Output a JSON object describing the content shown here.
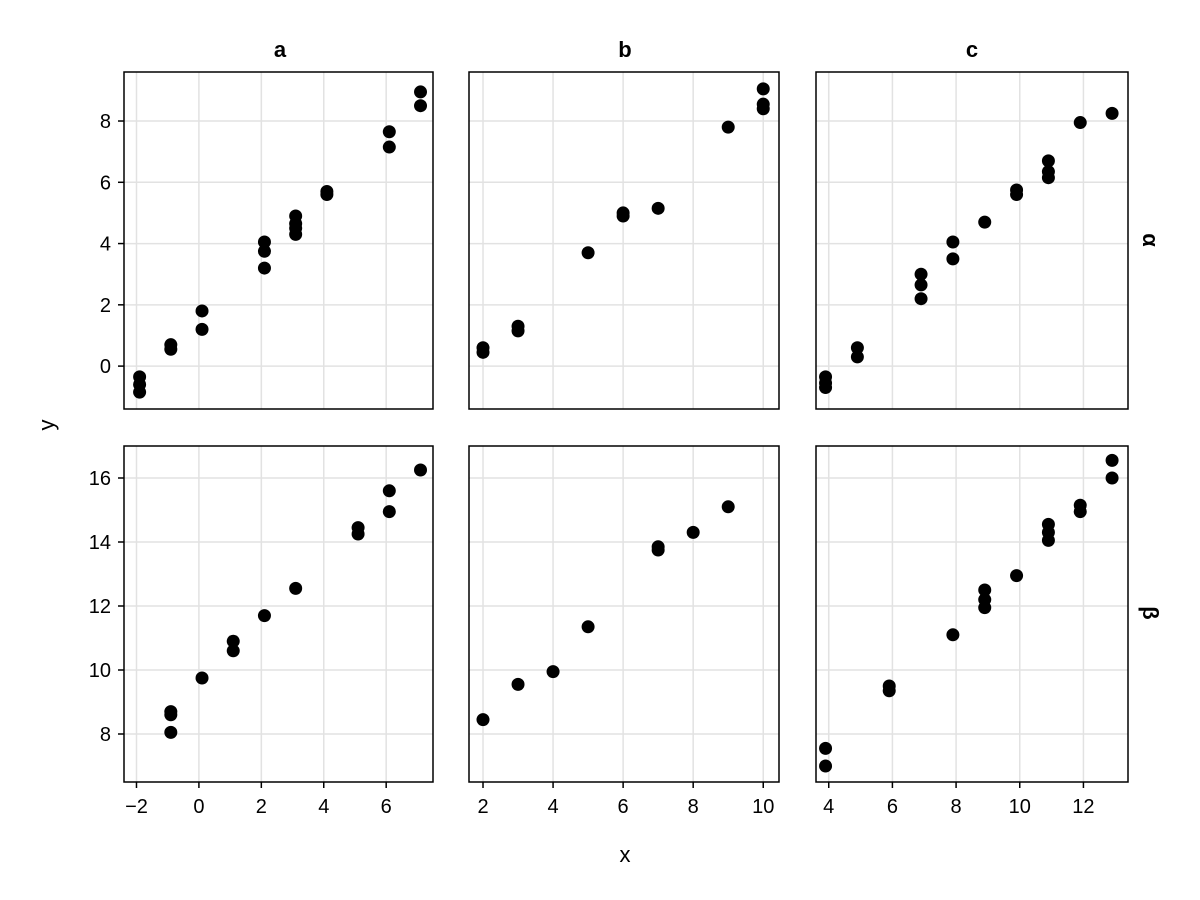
{
  "chart_data": {
    "type": "scatter",
    "xlabel": "x",
    "ylabel": "y",
    "column_labels": [
      "a",
      "b",
      "c"
    ],
    "row_labels": [
      "α",
      "β"
    ],
    "grid": true,
    "marker_color": "#000000",
    "row_yaxes": [
      {
        "ylim": [
          -1.4,
          9.6
        ],
        "yticks": [
          0,
          2,
          4,
          6,
          8
        ],
        "ytick_labels": [
          "0",
          "2",
          "4",
          "6",
          "8"
        ]
      },
      {
        "ylim": [
          6.5,
          17.0
        ],
        "yticks": [
          8,
          10,
          12,
          14,
          16
        ],
        "ytick_labels": [
          "8",
          "10",
          "12",
          "14",
          "16"
        ]
      }
    ],
    "col_xaxes": [
      {
        "xlim": [
          -2.4,
          7.5
        ],
        "xticks": [
          -2,
          0,
          2,
          4,
          6
        ],
        "xtick_labels": [
          "−2",
          "0",
          "2",
          "4",
          "6"
        ]
      },
      {
        "xlim": [
          1.6,
          10.45
        ],
        "xticks": [
          2,
          4,
          6,
          8,
          10
        ],
        "xtick_labels": [
          "2",
          "4",
          "6",
          "8",
          "10"
        ]
      },
      {
        "xlim": [
          3.6,
          13.4
        ],
        "xticks": [
          4,
          6,
          8,
          10,
          12
        ],
        "xtick_labels": [
          "4",
          "6",
          "8",
          "10",
          "12"
        ]
      }
    ],
    "panels": [
      {
        "row": 0,
        "col": 0,
        "points": [
          [
            -1.9,
            -0.35
          ],
          [
            -1.9,
            -0.6
          ],
          [
            -1.9,
            -0.85
          ],
          [
            -0.9,
            0.55
          ],
          [
            -0.9,
            0.7
          ],
          [
            0.1,
            1.2
          ],
          [
            0.1,
            1.8
          ],
          [
            2.1,
            3.2
          ],
          [
            2.1,
            3.75
          ],
          [
            2.1,
            4.05
          ],
          [
            3.1,
            4.3
          ],
          [
            3.1,
            4.5
          ],
          [
            3.1,
            4.65
          ],
          [
            3.1,
            4.9
          ],
          [
            4.1,
            5.6
          ],
          [
            4.1,
            5.7
          ],
          [
            6.1,
            7.15
          ],
          [
            6.1,
            7.65
          ],
          [
            7.1,
            8.5
          ],
          [
            7.1,
            8.95
          ]
        ]
      },
      {
        "row": 0,
        "col": 1,
        "points": [
          [
            2,
            0.45
          ],
          [
            2,
            0.6
          ],
          [
            3,
            1.15
          ],
          [
            3,
            1.3
          ],
          [
            5,
            3.7
          ],
          [
            6,
            4.9
          ],
          [
            6,
            5.0
          ],
          [
            7,
            5.15
          ],
          [
            9,
            7.8
          ],
          [
            10,
            8.4
          ],
          [
            10,
            8.55
          ],
          [
            10,
            9.05
          ]
        ]
      },
      {
        "row": 0,
        "col": 2,
        "points": [
          [
            3.9,
            -0.35
          ],
          [
            3.9,
            -0.55
          ],
          [
            3.9,
            -0.7
          ],
          [
            4.9,
            0.3
          ],
          [
            4.9,
            0.6
          ],
          [
            6.9,
            2.2
          ],
          [
            6.9,
            2.65
          ],
          [
            6.9,
            3.0
          ],
          [
            7.9,
            3.5
          ],
          [
            7.9,
            4.05
          ],
          [
            8.9,
            4.7
          ],
          [
            9.9,
            5.6
          ],
          [
            9.9,
            5.75
          ],
          [
            10.9,
            6.15
          ],
          [
            10.9,
            6.35
          ],
          [
            10.9,
            6.7
          ],
          [
            11.9,
            7.95
          ],
          [
            12.9,
            8.25
          ]
        ]
      },
      {
        "row": 1,
        "col": 0,
        "points": [
          [
            -0.9,
            8.05
          ],
          [
            -0.9,
            8.6
          ],
          [
            -0.9,
            8.7
          ],
          [
            0.1,
            9.75
          ],
          [
            1.1,
            10.6
          ],
          [
            1.1,
            10.9
          ],
          [
            2.1,
            11.7
          ],
          [
            3.1,
            12.55
          ],
          [
            5.1,
            14.25
          ],
          [
            5.1,
            14.45
          ],
          [
            6.1,
            14.95
          ],
          [
            6.1,
            15.6
          ],
          [
            7.1,
            16.25
          ]
        ]
      },
      {
        "row": 1,
        "col": 1,
        "points": [
          [
            2,
            8.45
          ],
          [
            3,
            9.55
          ],
          [
            4,
            9.95
          ],
          [
            5,
            11.35
          ],
          [
            7,
            13.75
          ],
          [
            7,
            13.85
          ],
          [
            8,
            14.3
          ],
          [
            9,
            15.1
          ]
        ]
      },
      {
        "row": 1,
        "col": 2,
        "points": [
          [
            3.9,
            7.0
          ],
          [
            3.9,
            7.55
          ],
          [
            5.9,
            9.35
          ],
          [
            5.9,
            9.5
          ],
          [
            7.9,
            11.1
          ],
          [
            8.9,
            11.95
          ],
          [
            8.9,
            12.2
          ],
          [
            8.9,
            12.5
          ],
          [
            9.9,
            12.95
          ],
          [
            10.9,
            14.05
          ],
          [
            10.9,
            14.3
          ],
          [
            10.9,
            14.55
          ],
          [
            11.9,
            14.95
          ],
          [
            11.9,
            15.15
          ],
          [
            12.9,
            16.0
          ],
          [
            12.9,
            16.55
          ]
        ]
      }
    ]
  }
}
